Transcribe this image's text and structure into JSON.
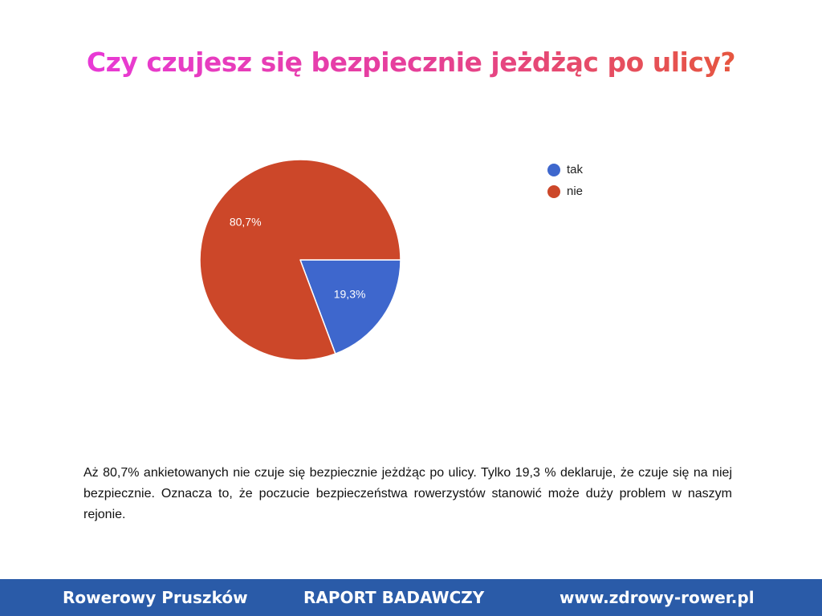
{
  "title": "Czy czujesz się bezpiecznie jeżdżąc po ulicy?",
  "colors": {
    "title_gradient_start": "#e83ad6",
    "title_gradient_end": "#e6563f",
    "tak": "#3e67cd",
    "nie": "#cc4729",
    "footer_background": "#2a5ba8"
  },
  "chart_data": {
    "type": "pie",
    "title": "",
    "slices": [
      {
        "label": "tak",
        "value": 19.3,
        "display": "19,3%",
        "color": "#3e67cd"
      },
      {
        "label": "nie",
        "value": 80.7,
        "display": "80,7%",
        "color": "#cc4729"
      }
    ],
    "legend": [
      "tak",
      "nie"
    ],
    "legend_position": "top-right"
  },
  "legend": {
    "items": [
      {
        "label": "tak",
        "color": "#3e67cd"
      },
      {
        "label": "nie",
        "color": "#cc4729"
      }
    ]
  },
  "description": "Aż 80,7% ankietowanych nie czuje się bezpiecznie jeżdżąc po ulicy. Tylko 19,3 % deklaruje, że czuje się na niej bezpiecznie. Oznacza to, że poczucie bezpieczeństwa rowerzystów stanowić może duży problem w naszym rejonie.",
  "footer": {
    "left": "Rowerowy Pruszków",
    "center": "RAPORT BADAWCZY",
    "right": "www.zdrowy-rower.pl"
  }
}
